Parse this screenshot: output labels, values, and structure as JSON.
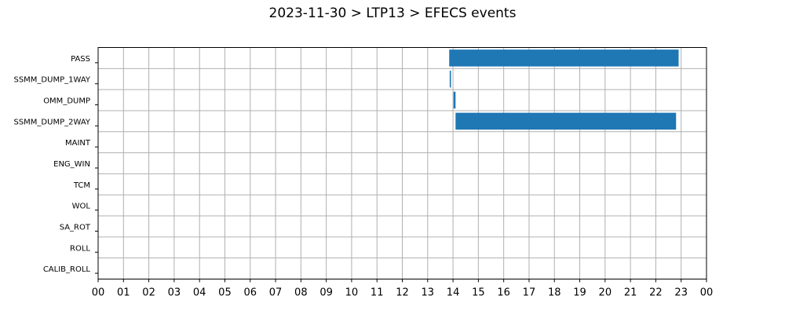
{
  "chart_data": {
    "type": "gantt",
    "title": "2023-11-30 > LTP13 > EFECS events",
    "categories": [
      "PASS",
      "SSMM_DUMP_1WAY",
      "OMM_DUMP",
      "SSMM_DUMP_2WAY",
      "MAINT",
      "ENG_WIN",
      "TCM",
      "WOL",
      "SA_ROT",
      "ROLL",
      "CALIB_ROLL"
    ],
    "x_tick_labels": [
      "00",
      "01",
      "02",
      "03",
      "04",
      "05",
      "06",
      "07",
      "08",
      "09",
      "10",
      "11",
      "12",
      "13",
      "14",
      "15",
      "16",
      "17",
      "18",
      "19",
      "20",
      "21",
      "22",
      "23",
      "00"
    ],
    "xlim_hours": [
      0,
      24
    ],
    "grid": true,
    "bar_color": "#1f77b4",
    "series": [
      {
        "category": "PASS",
        "start": 13.85,
        "end": 22.9
      },
      {
        "category": "SSMM_DUMP_1WAY",
        "start": 13.87,
        "end": 13.92
      },
      {
        "category": "OMM_DUMP",
        "start": 14.02,
        "end": 14.1
      },
      {
        "category": "SSMM_DUMP_2WAY",
        "start": 14.1,
        "end": 22.8
      }
    ]
  }
}
